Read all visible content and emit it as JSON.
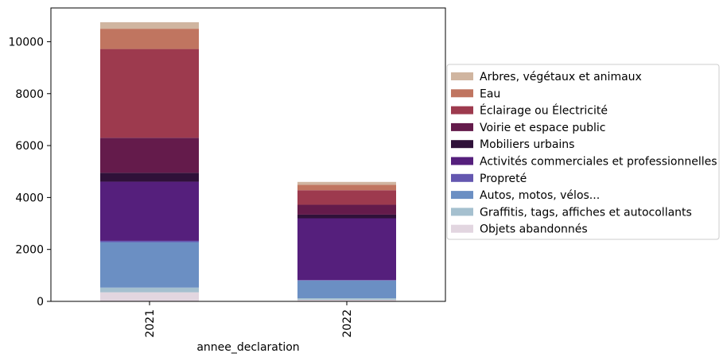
{
  "chart_data": {
    "type": "bar",
    "stacked": true,
    "xlabel": "annee_declaration",
    "ylabel": "",
    "categories": [
      "2021",
      "2022"
    ],
    "ylim": [
      0,
      11300
    ],
    "yticks": [
      0,
      2000,
      4000,
      6000,
      8000,
      10000
    ],
    "ytick_labels": [
      "0",
      "2000",
      "4000",
      "6000",
      "8000",
      "10000"
    ],
    "legend_position": "right",
    "series": [
      {
        "name": "Objets abandonnés",
        "color": "#e2d6e0",
        "values": [
          350,
          60
        ]
      },
      {
        "name": "Graffitis, tags, affiches et autocollants",
        "color": "#a5c0cf",
        "values": [
          180,
          60
        ]
      },
      {
        "name": "Autos, motos, vélos...",
        "color": "#6b8fc3",
        "values": [
          1750,
          680
        ]
      },
      {
        "name": "Propreté",
        "color": "#6457b0",
        "values": [
          50,
          20
        ]
      },
      {
        "name": "Activités commerciales et professionnelles",
        "color": "#551f7c",
        "values": [
          2280,
          2380
        ]
      },
      {
        "name": "Mobiliers urbains",
        "color": "#2f1139",
        "values": [
          340,
          140
        ]
      },
      {
        "name": "Voirie et espace public",
        "color": "#641b4b",
        "values": [
          1350,
          380
        ]
      },
      {
        "name": "Éclairage ou Électricité",
        "color": "#9d3a4e",
        "values": [
          3420,
          560
        ]
      },
      {
        "name": "Eau",
        "color": "#c07560",
        "values": [
          780,
          210
        ]
      },
      {
        "name": "Arbres, végétaux et animaux",
        "color": "#d0b5a0",
        "values": [
          250,
          110
        ]
      }
    ]
  }
}
